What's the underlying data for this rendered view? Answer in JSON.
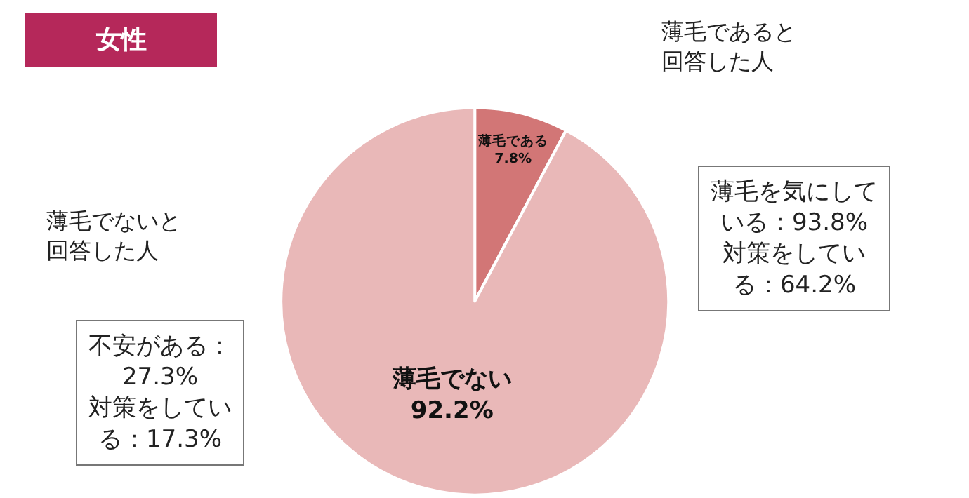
{
  "chart_data": {
    "type": "pie",
    "title": "女性",
    "categories": [
      "薄毛である",
      "薄毛でない"
    ],
    "values": [
      7.8,
      92.2
    ],
    "value_labels": [
      "7.8%",
      "92.2%"
    ],
    "colors": [
      "#d27676",
      "#e9b8b8"
    ],
    "annotations": [
      "薄毛であると回答した人",
      "薄毛を気にしている：93.8%\n対策をしている：64.2%",
      "薄毛でないと回答した人",
      "不安がある：27.3%\n対策をしている：17.3%"
    ]
  }
}
